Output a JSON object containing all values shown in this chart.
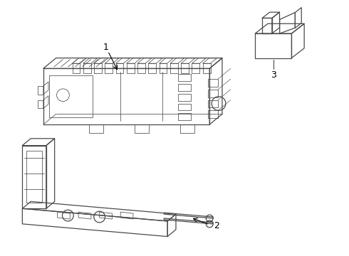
{
  "background_color": "#ffffff",
  "line_color": "#4a4a4a",
  "lw_main": 0.9,
  "lw_detail": 0.55,
  "label_1": "1",
  "label_2": "2",
  "label_3": "3",
  "figsize": [
    4.9,
    3.6
  ],
  "dpi": 100
}
